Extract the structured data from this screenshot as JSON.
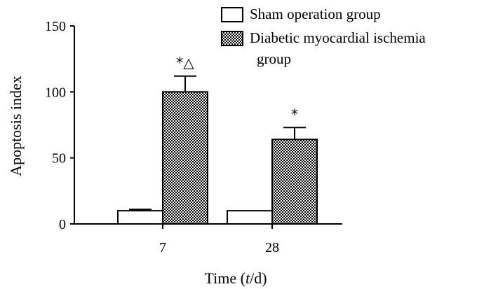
{
  "chart_data": {
    "type": "bar",
    "title": "",
    "xlabel_prefix": "Time (",
    "xlabel_var": "t",
    "xlabel_suffix": "/d)",
    "ylabel": "Apoptosis index",
    "categories": [
      "7",
      "28"
    ],
    "ylim": [
      0,
      150
    ],
    "yticks": [
      "0",
      "50",
      "100",
      "150"
    ],
    "series": [
      {
        "name": "Sham operation group",
        "fill": "#ffffff",
        "pattern": "none",
        "values": [
          10,
          10
        ],
        "errors": [
          1,
          0
        ]
      },
      {
        "name": "Diabetic myocardial ischemia group",
        "name_lines": [
          "Diabetic myocardial ischemia",
          "group"
        ],
        "fill": "checkerboard",
        "pattern": "checker",
        "values": [
          100,
          64
        ],
        "errors": [
          12,
          9
        ]
      }
    ],
    "annotations": [
      "*△",
      "*"
    ],
    "grid": false,
    "legend_position": "top-right"
  }
}
